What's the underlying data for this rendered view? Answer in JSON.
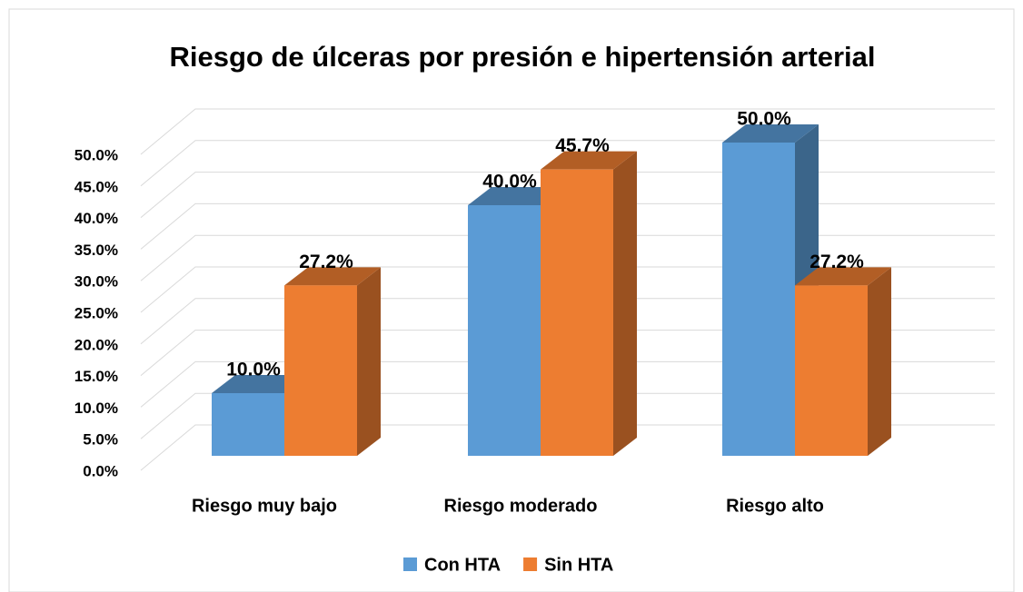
{
  "chart_data": {
    "type": "bar3d",
    "title": "Riesgo de úlceras por presión e hipertensión arterial",
    "categories": [
      "Riesgo muy bajo",
      "Riesgo moderado",
      "Riesgo alto"
    ],
    "series": [
      {
        "name": "Con HTA",
        "color": "#5b9bd5",
        "values": [
          10,
          40,
          50
        ],
        "value_labels": [
          "10.0%",
          "40.0%",
          "50.0%"
        ]
      },
      {
        "name": "Sin HTA",
        "color": "#ed7d31",
        "values": [
          27.2,
          45.7,
          27.2
        ],
        "value_labels": [
          "27.2%",
          "45.7%",
          "27.2%"
        ]
      }
    ],
    "ylim": [
      0,
      50
    ],
    "yticks": [
      {
        "value": 0,
        "label": "0.0%"
      },
      {
        "value": 5,
        "label": "5.0%"
      },
      {
        "value": 10,
        "label": "10.0%"
      },
      {
        "value": 15,
        "label": "15.0%"
      },
      {
        "value": 20,
        "label": "20.0%"
      },
      {
        "value": 25,
        "label": "25.0%"
      },
      {
        "value": 30,
        "label": "30.0%"
      },
      {
        "value": 35,
        "label": "35.0%"
      },
      {
        "value": 40,
        "label": "40.0%"
      },
      {
        "value": 45,
        "label": "45.0%"
      },
      {
        "value": 50,
        "label": "50.0%"
      }
    ],
    "grid": true,
    "legend": "bottom"
  }
}
